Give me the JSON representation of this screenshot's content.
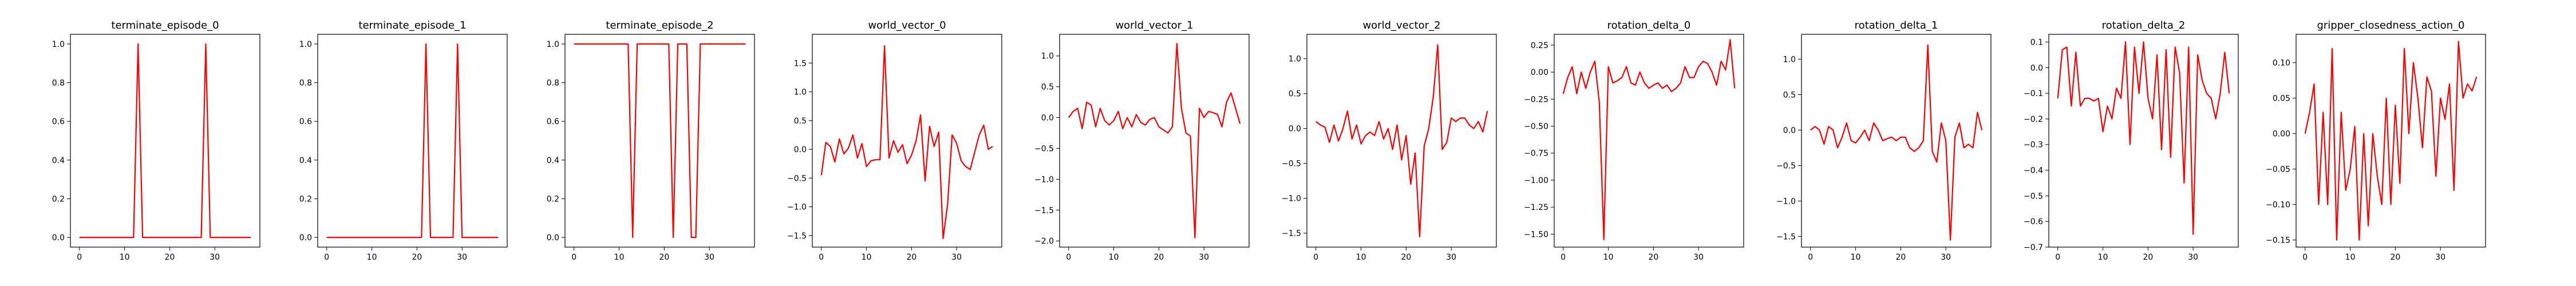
{
  "line_color": "#ff0000",
  "chart_data": [
    {
      "type": "line",
      "title": "terminate_episode_0",
      "xlim": [
        -2,
        40
      ],
      "ylim": [
        -0.05,
        1.05
      ],
      "xticks": [
        0,
        10,
        20,
        30
      ],
      "yticks": [
        0.0,
        0.2,
        0.4,
        0.6,
        0.8,
        1.0
      ],
      "x": [
        0,
        1,
        2,
        3,
        4,
        5,
        6,
        7,
        8,
        9,
        10,
        11,
        12,
        13,
        14,
        15,
        16,
        17,
        18,
        19,
        20,
        21,
        22,
        23,
        24,
        25,
        26,
        27,
        28,
        29,
        30,
        31,
        32,
        33,
        34,
        35,
        36,
        37,
        38
      ],
      "series": [
        {
          "values": [
            0,
            0,
            0,
            0,
            0,
            0,
            0,
            0,
            0,
            0,
            0,
            0,
            0,
            1,
            0,
            0,
            0,
            0,
            0,
            0,
            0,
            0,
            0,
            0,
            0,
            0,
            0,
            0,
            1,
            0,
            0,
            0,
            0,
            0,
            0,
            0,
            0,
            0,
            0
          ]
        }
      ]
    },
    {
      "type": "line",
      "title": "terminate_episode_1",
      "xlim": [
        -2,
        40
      ],
      "ylim": [
        -0.05,
        1.05
      ],
      "xticks": [
        0,
        10,
        20,
        30
      ],
      "yticks": [
        0.0,
        0.2,
        0.4,
        0.6,
        0.8,
        1.0
      ],
      "x": [
        0,
        1,
        2,
        3,
        4,
        5,
        6,
        7,
        8,
        9,
        10,
        11,
        12,
        13,
        14,
        15,
        16,
        17,
        18,
        19,
        20,
        21,
        22,
        23,
        24,
        25,
        26,
        27,
        28,
        29,
        30,
        31,
        32,
        33,
        34,
        35,
        36,
        37,
        38
      ],
      "series": [
        {
          "values": [
            0,
            0,
            0,
            0,
            0,
            0,
            0,
            0,
            0,
            0,
            0,
            0,
            0,
            0,
            0,
            0,
            0,
            0,
            0,
            0,
            0,
            0,
            1,
            0,
            0,
            0,
            0,
            0,
            0,
            1,
            0,
            0,
            0,
            0,
            0,
            0,
            0,
            0,
            0
          ]
        }
      ]
    },
    {
      "type": "line",
      "title": "terminate_episode_2",
      "xlim": [
        -2,
        40
      ],
      "ylim": [
        -0.05,
        1.05
      ],
      "xticks": [
        0,
        10,
        20,
        30
      ],
      "yticks": [
        0.0,
        0.2,
        0.4,
        0.6,
        0.8,
        1.0
      ],
      "x": [
        0,
        1,
        2,
        3,
        4,
        5,
        6,
        7,
        8,
        9,
        10,
        11,
        12,
        13,
        14,
        15,
        16,
        17,
        18,
        19,
        20,
        21,
        22,
        23,
        24,
        25,
        26,
        27,
        28,
        29,
        30,
        31,
        32,
        33,
        34,
        35,
        36,
        37,
        38
      ],
      "series": [
        {
          "values": [
            1,
            1,
            1,
            1,
            1,
            1,
            1,
            1,
            1,
            1,
            1,
            1,
            1,
            0,
            1,
            1,
            1,
            1,
            1,
            1,
            1,
            1,
            0,
            1,
            1,
            1,
            0,
            0,
            1,
            1,
            1,
            1,
            1,
            1,
            1,
            1,
            1,
            1,
            1
          ]
        }
      ]
    },
    {
      "type": "line",
      "title": "world_vector_0",
      "xlim": [
        -2,
        40
      ],
      "ylim": [
        -1.7,
        2.0
      ],
      "xticks": [
        0,
        10,
        20,
        30
      ],
      "yticks": [
        -1.5,
        -1.0,
        -0.5,
        0.0,
        0.5,
        1.0,
        1.5
      ],
      "x": [
        0,
        1,
        2,
        3,
        4,
        5,
        6,
        7,
        8,
        9,
        10,
        11,
        12,
        13,
        14,
        15,
        16,
        17,
        18,
        19,
        20,
        21,
        22,
        23,
        24,
        25,
        26,
        27,
        28,
        29,
        30,
        31,
        32,
        33,
        34,
        35,
        36,
        37,
        38
      ],
      "series": [
        {
          "values": [
            -0.45,
            0.12,
            0.05,
            -0.22,
            0.18,
            -0.08,
            0.02,
            0.25,
            -0.15,
            0.1,
            -0.3,
            -0.2,
            -0.18,
            -0.18,
            1.8,
            -0.15,
            0.15,
            -0.05,
            0.08,
            -0.25,
            -0.1,
            0.15,
            0.6,
            -0.55,
            0.4,
            0.05,
            0.3,
            -1.55,
            -0.95,
            0.25,
            0.1,
            -0.2,
            -0.3,
            -0.35,
            -0.05,
            0.25,
            0.42,
            0.0,
            0.05
          ]
        }
      ]
    },
    {
      "type": "line",
      "title": "world_vector_1",
      "xlim": [
        -2,
        40
      ],
      "ylim": [
        -2.1,
        1.35
      ],
      "xticks": [
        0,
        10,
        20,
        30
      ],
      "yticks": [
        -2.0,
        -1.5,
        -1.0,
        -0.5,
        0.0,
        0.5,
        1.0
      ],
      "x": [
        0,
        1,
        2,
        3,
        4,
        5,
        6,
        7,
        8,
        9,
        10,
        11,
        12,
        13,
        14,
        15,
        16,
        17,
        18,
        19,
        20,
        21,
        22,
        23,
        24,
        25,
        26,
        27,
        28,
        29,
        30,
        31,
        32,
        33,
        34,
        35,
        36,
        37,
        38
      ],
      "series": [
        {
          "values": [
            0.0,
            0.1,
            0.15,
            -0.18,
            0.25,
            0.2,
            -0.15,
            0.15,
            -0.05,
            -0.12,
            -0.05,
            0.1,
            -0.18,
            0.0,
            -0.15,
            0.05,
            -0.08,
            -0.12,
            -0.03,
            0.0,
            -0.15,
            -0.2,
            -0.25,
            -0.15,
            1.2,
            0.15,
            -0.25,
            -0.3,
            -1.95,
            0.15,
            0.0,
            0.1,
            0.08,
            0.05,
            -0.15,
            0.25,
            0.4,
            0.15,
            -0.1
          ]
        }
      ]
    },
    {
      "type": "line",
      "title": "world_vector_2",
      "xlim": [
        -2,
        40
      ],
      "ylim": [
        -1.7,
        1.35
      ],
      "xticks": [
        0,
        10,
        20,
        30
      ],
      "yticks": [
        -1.5,
        -1.0,
        -0.5,
        0.0,
        0.5,
        1.0
      ],
      "x": [
        0,
        1,
        2,
        3,
        4,
        5,
        6,
        7,
        8,
        9,
        10,
        11,
        12,
        13,
        14,
        15,
        16,
        17,
        18,
        19,
        20,
        21,
        22,
        23,
        24,
        25,
        26,
        27,
        28,
        29,
        30,
        31,
        32,
        33,
        34,
        35,
        36,
        37,
        38
      ],
      "series": [
        {
          "values": [
            0.1,
            0.05,
            0.02,
            -0.2,
            0.05,
            -0.18,
            0.0,
            0.25,
            -0.15,
            0.05,
            -0.22,
            -0.1,
            -0.05,
            -0.1,
            0.1,
            -0.15,
            0.0,
            -0.3,
            0.05,
            -0.45,
            -0.1,
            -0.8,
            -0.35,
            -1.55,
            -0.25,
            0.0,
            0.45,
            1.2,
            -0.3,
            -0.2,
            0.15,
            0.1,
            0.15,
            0.15,
            0.05,
            0.0,
            0.1,
            -0.05,
            0.25
          ]
        }
      ]
    },
    {
      "type": "line",
      "title": "rotation_delta_0",
      "xlim": [
        -2,
        40
      ],
      "ylim": [
        -1.62,
        0.35
      ],
      "xticks": [
        0,
        10,
        20,
        30
      ],
      "yticks": [
        -1.5,
        -1.25,
        -1.0,
        -0.75,
        -0.5,
        -0.25,
        0.0,
        0.25
      ],
      "x": [
        0,
        1,
        2,
        3,
        4,
        5,
        6,
        7,
        8,
        9,
        10,
        11,
        12,
        13,
        14,
        15,
        16,
        17,
        18,
        19,
        20,
        21,
        22,
        23,
        24,
        25,
        26,
        27,
        28,
        29,
        30,
        31,
        32,
        33,
        34,
        35,
        36,
        37,
        38
      ],
      "series": [
        {
          "values": [
            -0.2,
            -0.05,
            0.05,
            -0.2,
            0.0,
            -0.15,
            0.0,
            0.1,
            -0.28,
            -1.55,
            0.05,
            -0.1,
            -0.08,
            -0.05,
            0.05,
            -0.1,
            -0.12,
            0.0,
            -0.1,
            -0.15,
            -0.12,
            -0.1,
            -0.15,
            -0.12,
            -0.18,
            -0.15,
            -0.1,
            0.05,
            -0.05,
            -0.05,
            0.05,
            0.1,
            0.08,
            0.0,
            -0.12,
            0.1,
            0.02,
            0.3,
            -0.15
          ]
        }
      ]
    },
    {
      "type": "line",
      "title": "rotation_delta_1",
      "xlim": [
        -2,
        40
      ],
      "ylim": [
        -1.65,
        1.35
      ],
      "xticks": [
        0,
        10,
        20,
        30
      ],
      "yticks": [
        -1.5,
        -1.0,
        -0.5,
        0.0,
        0.5,
        1.0
      ],
      "x": [
        0,
        1,
        2,
        3,
        4,
        5,
        6,
        7,
        8,
        9,
        10,
        11,
        12,
        13,
        14,
        15,
        16,
        17,
        18,
        19,
        20,
        21,
        22,
        23,
        24,
        25,
        26,
        27,
        28,
        29,
        30,
        31,
        32,
        33,
        34,
        35,
        36,
        37,
        38
      ],
      "series": [
        {
          "values": [
            0.0,
            0.05,
            0.0,
            -0.2,
            0.05,
            0.0,
            -0.25,
            -0.1,
            0.1,
            -0.15,
            -0.18,
            -0.1,
            0.0,
            -0.15,
            0.1,
            0.0,
            -0.15,
            -0.12,
            -0.1,
            -0.15,
            -0.1,
            -0.1,
            -0.25,
            -0.3,
            -0.25,
            -0.15,
            1.2,
            -0.3,
            -0.45,
            0.1,
            -0.15,
            -1.55,
            -0.1,
            0.1,
            -0.25,
            -0.2,
            -0.25,
            0.25,
            0.0
          ]
        }
      ]
    },
    {
      "type": "line",
      "title": "rotation_delta_2",
      "xlim": [
        -2,
        40
      ],
      "ylim": [
        -0.7,
        0.13
      ],
      "xticks": [
        0,
        10,
        20,
        30
      ],
      "yticks": [
        -0.7,
        -0.6,
        -0.5,
        -0.4,
        -0.3,
        -0.2,
        -0.1,
        0.0,
        0.1
      ],
      "x": [
        0,
        1,
        2,
        3,
        4,
        5,
        6,
        7,
        8,
        9,
        10,
        11,
        12,
        13,
        14,
        15,
        16,
        17,
        18,
        19,
        20,
        21,
        22,
        23,
        24,
        25,
        26,
        27,
        28,
        29,
        30,
        31,
        32,
        33,
        34,
        35,
        36,
        37,
        38
      ],
      "series": [
        {
          "values": [
            -0.12,
            0.07,
            0.08,
            -0.15,
            0.06,
            -0.15,
            -0.12,
            -0.12,
            -0.13,
            -0.12,
            -0.25,
            -0.15,
            -0.2,
            -0.08,
            -0.12,
            0.1,
            -0.3,
            0.08,
            -0.1,
            0.1,
            -0.12,
            -0.2,
            0.05,
            -0.32,
            0.07,
            -0.35,
            0.08,
            -0.02,
            -0.45,
            0.08,
            -0.65,
            0.05,
            -0.05,
            -0.1,
            -0.12,
            -0.2,
            -0.1,
            0.06,
            -0.1
          ]
        }
      ]
    },
    {
      "type": "line",
      "title": "gripper_closedness_action_0",
      "xlim": [
        -2,
        40
      ],
      "ylim": [
        -0.16,
        0.14
      ],
      "xticks": [
        0,
        10,
        20,
        30
      ],
      "yticks": [
        -0.15,
        -0.1,
        -0.05,
        0.0,
        0.05,
        0.1
      ],
      "x": [
        0,
        1,
        2,
        3,
        4,
        5,
        6,
        7,
        8,
        9,
        10,
        11,
        12,
        13,
        14,
        15,
        16,
        17,
        18,
        19,
        20,
        21,
        22,
        23,
        24,
        25,
        26,
        27,
        28,
        29,
        30,
        31,
        32,
        33,
        34,
        35,
        36,
        37,
        38
      ],
      "series": [
        {
          "values": [
            0.0,
            0.03,
            0.07,
            -0.1,
            0.03,
            -0.1,
            0.12,
            -0.15,
            0.03,
            -0.08,
            -0.05,
            0.01,
            -0.15,
            0.0,
            -0.13,
            0.0,
            -0.06,
            -0.1,
            0.05,
            -0.1,
            0.04,
            -0.07,
            0.12,
            0.0,
            0.1,
            0.05,
            -0.02,
            0.08,
            0.06,
            -0.06,
            0.05,
            0.02,
            0.07,
            -0.08,
            0.13,
            0.05,
            0.07,
            0.06,
            0.08
          ]
        }
      ]
    }
  ]
}
